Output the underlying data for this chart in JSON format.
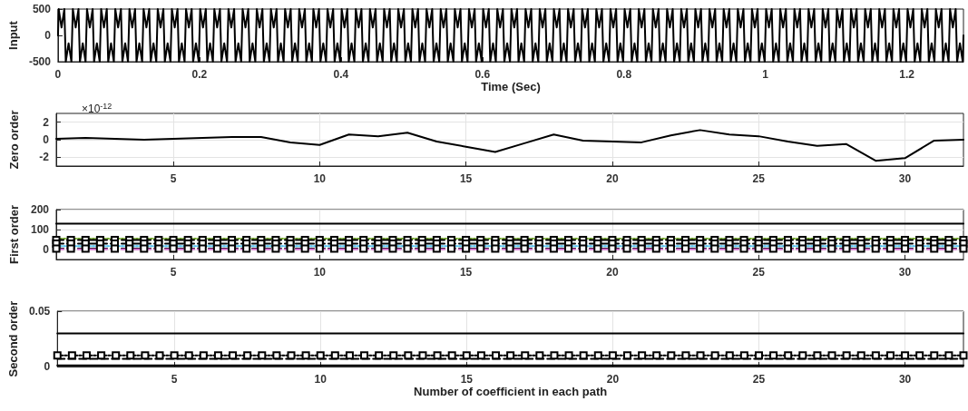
{
  "chart_data": [
    {
      "type": "line",
      "ylabel": "Input",
      "xlabel": "Time (Sec)",
      "xlim": [
        0,
        1.28
      ],
      "xticks": [
        0,
        0.2,
        0.4,
        0.6,
        0.8,
        1,
        1.2
      ],
      "ylim": [
        -500,
        500
      ],
      "yticks": [
        -500,
        0,
        500
      ],
      "grid": false,
      "marker": "none",
      "line_style": "solid",
      "series": [
        {
          "color": "#000000",
          "x": [
            0,
            0.001,
            0.005,
            0.009,
            0.011,
            0.015,
            0.019,
            0.021,
            0.025,
            0.029,
            0.031,
            0.035,
            0.039,
            0.041,
            0.045,
            0.049,
            0.051,
            0.055,
            0.059,
            0.061,
            0.065,
            0.069,
            0.071,
            0.075,
            0.079,
            0.081,
            0.085,
            0.089,
            0.091,
            0.095,
            0.099,
            0.101,
            0.105,
            0.109,
            0.111,
            0.115,
            0.119,
            0.121,
            0.125,
            0.129,
            0.131,
            0.135,
            0.139,
            0.141,
            0.145,
            0.149,
            0.151,
            0.155,
            0.159,
            0.161,
            0.165,
            0.169,
            0.171,
            0.175,
            0.179,
            0.181,
            0.185,
            0.189,
            0.191,
            0.195,
            0.199,
            0.201,
            0.205,
            0.209,
            0.211,
            0.215,
            0.219,
            0.221,
            0.225,
            0.229,
            0.231,
            0.235,
            0.239,
            0.241,
            0.245,
            0.249,
            0.251,
            0.255,
            0.259,
            0.261,
            0.265,
            0.269,
            0.271,
            0.275,
            0.279,
            0.281,
            0.285,
            0.289,
            0.291,
            0.295,
            0.299,
            0.301,
            0.305,
            0.309,
            0.311,
            0.315,
            0.319,
            0.321,
            0.325,
            0.329,
            0.331,
            0.335,
            0.339,
            0.341,
            0.345,
            0.349,
            0.351,
            0.355,
            0.359,
            0.361,
            0.365,
            0.369,
            0.371,
            0.375,
            0.379,
            0.381,
            0.385,
            0.389,
            0.391,
            0.395,
            0.399,
            0.401,
            0.405,
            0.409,
            0.411,
            0.415,
            0.419,
            0.421,
            0.425,
            0.429,
            0.431,
            0.435,
            0.439,
            0.441,
            0.445,
            0.449,
            0.451,
            0.455,
            0.459,
            0.461,
            0.465,
            0.469,
            0.471,
            0.475,
            0.479,
            0.481,
            0.485,
            0.489,
            0.491,
            0.495,
            0.499,
            0.501,
            0.505,
            0.509,
            0.511,
            0.515,
            0.519,
            0.521,
            0.525,
            0.529,
            0.531,
            0.535,
            0.539,
            0.541,
            0.545,
            0.549,
            0.551,
            0.555,
            0.559,
            0.561,
            0.565,
            0.569,
            0.571,
            0.575,
            0.579,
            0.581,
            0.585,
            0.589,
            0.591,
            0.595,
            0.599,
            0.601,
            0.605,
            0.609,
            0.611,
            0.615,
            0.619,
            0.621,
            0.625,
            0.629,
            0.631,
            0.635,
            0.639,
            0.641,
            0.645,
            0.649,
            0.651,
            0.655,
            0.659,
            0.661,
            0.665,
            0.669,
            0.671,
            0.675,
            0.679,
            0.681,
            0.685,
            0.689,
            0.691,
            0.695,
            0.699,
            0.701,
            0.705,
            0.709,
            0.711,
            0.715,
            0.719,
            0.721,
            0.725,
            0.729,
            0.731,
            0.735,
            0.739,
            0.741,
            0.745,
            0.749,
            0.751,
            0.755,
            0.759,
            0.761,
            0.765,
            0.769,
            0.771,
            0.775,
            0.779,
            0.781,
            0.785,
            0.789,
            0.791,
            0.795,
            0.799,
            0.801,
            0.805,
            0.809,
            0.811,
            0.815,
            0.819,
            0.821,
            0.825,
            0.829,
            0.831,
            0.835,
            0.839,
            0.841,
            0.845,
            0.849,
            0.851,
            0.855,
            0.859,
            0.861,
            0.865,
            0.869,
            0.871,
            0.875,
            0.879,
            0.881,
            0.885,
            0.889,
            0.891,
            0.895,
            0.899,
            0.901,
            0.905,
            0.909,
            0.911,
            0.915,
            0.919,
            0.921,
            0.925,
            0.929,
            0.931,
            0.935,
            0.939,
            0.941,
            0.945,
            0.949,
            0.951,
            0.955,
            0.959,
            0.961,
            0.965,
            0.969,
            0.971,
            0.975,
            0.979,
            0.981,
            0.985,
            0.989,
            0.991,
            0.995,
            0.999,
            1.001,
            1.005,
            1.009,
            1.011,
            1.015,
            1.019,
            1.021,
            1.025,
            1.029,
            1.031,
            1.035,
            1.039,
            1.041,
            1.045,
            1.049,
            1.051,
            1.055,
            1.059,
            1.061,
            1.065,
            1.069,
            1.071,
            1.075,
            1.079,
            1.081,
            1.085,
            1.089,
            1.091,
            1.095,
            1.099,
            1.101,
            1.105,
            1.109,
            1.111,
            1.115,
            1.119,
            1.121,
            1.125,
            1.129,
            1.131,
            1.135,
            1.139,
            1.141,
            1.145,
            1.149,
            1.151,
            1.155,
            1.159,
            1.161,
            1.165,
            1.169,
            1.171,
            1.175,
            1.179,
            1.181,
            1.185,
            1.189,
            1.191,
            1.195,
            1.199,
            1.201,
            1.205,
            1.209,
            1.211,
            1.215,
            1.219,
            1.221,
            1.225,
            1.229,
            1.231,
            1.235,
            1.239,
            1.241,
            1.245,
            1.249,
            1.251,
            1.255,
            1.259,
            1.261,
            1.265,
            1.269,
            1.271,
            1.275,
            1.279,
            1.28
          ],
          "values": [
            0,
            500,
            150,
            500,
            -500,
            -150,
            -500,
            500,
            150,
            500,
            -500,
            -150,
            -500,
            500,
            150,
            500,
            -500,
            -150,
            -500,
            500,
            150,
            500,
            -500,
            -150,
            -500,
            500,
            150,
            500,
            -500,
            -150,
            -500,
            500,
            150,
            500,
            -500,
            -150,
            -500,
            500,
            150,
            500,
            -500,
            -150,
            -500,
            500,
            150,
            500,
            -500,
            -150,
            -500,
            500,
            150,
            500,
            -500,
            -150,
            -500,
            500,
            150,
            500,
            -500,
            -150,
            -500,
            500,
            150,
            500,
            -500,
            -150,
            -500,
            500,
            150,
            500,
            -500,
            -150,
            -500,
            500,
            150,
            500,
            -500,
            -150,
            -500,
            500,
            150,
            500,
            -500,
            -150,
            -500,
            500,
            150,
            500,
            -500,
            -150,
            -500,
            500,
            150,
            500,
            -500,
            -150,
            -500,
            500,
            150,
            500,
            -500,
            -150,
            -500,
            500,
            150,
            500,
            -500,
            -150,
            -500,
            500,
            150,
            500,
            -500,
            -150,
            -500,
            500,
            150,
            500,
            -500,
            -150,
            -500,
            500,
            150,
            500,
            -500,
            -150,
            -500,
            500,
            150,
            500,
            -500,
            -150,
            -500,
            500,
            150,
            500,
            -500,
            -150,
            -500,
            500,
            150,
            500,
            -500,
            -150,
            -500,
            500,
            150,
            500,
            -500,
            -150,
            -500,
            500,
            150,
            500,
            -500,
            -150,
            -500,
            500,
            150,
            500,
            -500,
            -150,
            -500,
            500,
            150,
            500,
            -500,
            -150,
            -500,
            500,
            150,
            500,
            -500,
            -150,
            -500,
            500,
            150,
            500,
            -500,
            -150,
            -500,
            500,
            150,
            500,
            -500,
            -150,
            -500,
            500,
            150,
            500,
            -500,
            -150,
            -500,
            500,
            150,
            500,
            -500,
            -150,
            -500,
            500,
            150,
            500,
            -500,
            -150,
            -500,
            500,
            150,
            500,
            -500,
            -150,
            -500,
            500,
            150,
            500,
            -500,
            -150,
            -500,
            500,
            150,
            500,
            -500,
            -150,
            -500,
            500,
            150,
            500,
            -500,
            -150,
            -500,
            500,
            150,
            500,
            -500,
            -150,
            -500,
            500,
            150,
            500,
            -500,
            -150,
            -500,
            500,
            150,
            500,
            -500,
            -150,
            -500,
            500,
            150,
            500,
            -500,
            -150,
            -500,
            500,
            150,
            500,
            -500,
            -150,
            -500,
            500,
            150,
            500,
            -500,
            -150,
            -500,
            500,
            150,
            500,
            -500,
            -150,
            -500,
            500,
            150,
            500,
            -500,
            -150,
            -500,
            500,
            150,
            500,
            -500,
            -150,
            -500,
            500,
            150,
            500,
            -500,
            -150,
            -500,
            500,
            150,
            500,
            -500,
            -150,
            -500,
            500,
            150,
            500,
            -500,
            -150,
            -500,
            500,
            150,
            500,
            -500,
            -150,
            -500,
            500,
            150,
            500,
            -500,
            -150,
            -500,
            500,
            150,
            500,
            -500,
            -150,
            -500,
            500,
            150,
            500,
            -500,
            -150,
            -500,
            500,
            150,
            500,
            -500,
            -150,
            -500,
            500,
            150,
            500,
            -500,
            -150,
            -500,
            500,
            150,
            500,
            -500,
            -150,
            -500,
            500,
            150,
            500,
            -500,
            -150,
            -500,
            500,
            150,
            500,
            -500,
            -150,
            -500,
            500,
            150,
            500,
            -500,
            -150,
            -500,
            500,
            150,
            500,
            -500,
            -150,
            -500,
            500,
            150,
            500,
            -500,
            -150,
            -500,
            500,
            150,
            500,
            -500,
            -150,
            -500,
            500,
            150,
            500,
            -500,
            -150,
            -500,
            0
          ]
        }
      ]
    },
    {
      "type": "line",
      "ylabel": "Zero order",
      "annotations": [
        "×10$^{-12}$"
      ],
      "xlim": [
        1,
        32
      ],
      "xticks": [
        5,
        10,
        15,
        20,
        25,
        30
      ],
      "ylim": [
        -3,
        3
      ],
      "yticks": [
        -2,
        0,
        2
      ],
      "grid": true,
      "marker": "none",
      "line_style": "solid",
      "x": [
        1,
        2,
        3,
        4,
        5,
        6,
        7,
        8,
        9,
        10,
        11,
        12,
        13,
        14,
        15,
        16,
        17,
        18,
        19,
        20,
        21,
        22,
        23,
        24,
        25,
        26,
        27,
        28,
        29,
        30,
        31,
        32
      ],
      "series": [
        {
          "color": "#000000",
          "values": [
            0.1,
            0.2,
            0.1,
            0.0,
            0.1,
            0.2,
            0.3,
            0.3,
            -0.3,
            -0.6,
            0.6,
            0.4,
            0.8,
            -0.2,
            -0.8,
            -1.4,
            -0.4,
            0.6,
            -0.1,
            -0.2,
            -0.3,
            0.5,
            1.1,
            0.6,
            0.4,
            -0.2,
            -0.7,
            -0.5,
            -2.4,
            -2.1,
            -0.1,
            0.0
          ]
        }
      ]
    },
    {
      "type": "line",
      "ylabel": "First order",
      "xlim": [
        1,
        32
      ],
      "xticks": [
        5,
        10,
        15,
        20,
        25,
        30
      ],
      "ylim": [
        -50,
        200
      ],
      "yticks": [
        0,
        100,
        200
      ],
      "grid": true,
      "x": [
        1,
        1.5,
        2,
        2.5,
        3,
        3.5,
        4,
        4.5,
        5,
        5.5,
        6,
        6.5,
        7,
        7.5,
        8,
        8.5,
        9,
        9.5,
        10,
        10.5,
        11,
        11.5,
        12,
        12.5,
        13,
        13.5,
        14,
        14.5,
        15,
        15.5,
        16,
        16.5,
        17,
        17.5,
        18,
        18.5,
        19,
        19.5,
        20,
        20.5,
        21,
        21.5,
        22,
        22.5,
        23,
        23.5,
        24,
        24.5,
        25,
        25.5,
        26,
        26.5,
        27,
        27.5,
        28,
        28.5,
        29,
        29.5,
        30,
        30.5,
        31,
        31.5,
        32
      ],
      "series": [
        {
          "color": "#000000",
          "x": [
            1,
            32
          ],
          "values": [
            130,
            130
          ],
          "marker": "none",
          "line_style": "solid"
        },
        {
          "color": "#77ac30",
          "x": [
            1,
            32
          ],
          "values": [
            54,
            54
          ],
          "marker": "none",
          "line_style": "dotted"
        },
        {
          "color": "#000000",
          "values": [
            48,
            48,
            48,
            48,
            48,
            48,
            48,
            48,
            48,
            48,
            48,
            48,
            48,
            48,
            48,
            48,
            48,
            48,
            48,
            48,
            48,
            48,
            48,
            48,
            48,
            48,
            48,
            48,
            48,
            48,
            48,
            48,
            48,
            48,
            48,
            48,
            48,
            48,
            48,
            48,
            48,
            48,
            48,
            48,
            48,
            48,
            48,
            48,
            48,
            48,
            48,
            48,
            48,
            48,
            48,
            48,
            48,
            48,
            48,
            48,
            48,
            48,
            48
          ],
          "marker": "square",
          "line_style": "dashed"
        },
        {
          "color": "#000000",
          "values": [
            30,
            30,
            30,
            30,
            30,
            30,
            30,
            30,
            30,
            30,
            30,
            30,
            30,
            30,
            30,
            30,
            30,
            30,
            30,
            30,
            30,
            30,
            30,
            30,
            30,
            30,
            30,
            30,
            30,
            30,
            30,
            30,
            30,
            30,
            30,
            30,
            30,
            30,
            30,
            30,
            30,
            30,
            30,
            30,
            30,
            30,
            30,
            30,
            30,
            30,
            30,
            30,
            30,
            30,
            30,
            30,
            30,
            30,
            30,
            30,
            30,
            30,
            30
          ],
          "marker": "square",
          "line_style": "dashed"
        },
        {
          "color": "#4dbeee",
          "x": [
            1,
            32
          ],
          "values": [
            17,
            17
          ],
          "marker": "none",
          "line_style": "dotted"
        },
        {
          "color": "#000000",
          "values": [
            5,
            5,
            5,
            5,
            5,
            5,
            5,
            5,
            5,
            5,
            5,
            5,
            5,
            5,
            5,
            5,
            5,
            5,
            5,
            5,
            5,
            5,
            5,
            5,
            5,
            5,
            5,
            5,
            5,
            5,
            5,
            5,
            5,
            5,
            5,
            5,
            5,
            5,
            5,
            5,
            5,
            5,
            5,
            5,
            5,
            5,
            5,
            5,
            5,
            5,
            5,
            5,
            5,
            5,
            5,
            5,
            5,
            5,
            5,
            5,
            5,
            5,
            5
          ],
          "marker": "square",
          "line_style": "dashed"
        },
        {
          "color": "#d96ad0",
          "x": [
            1,
            32
          ],
          "values": [
            1,
            1
          ],
          "marker": "none",
          "line_style": "dashed"
        }
      ]
    },
    {
      "type": "line",
      "ylabel": "Second order",
      "xlabel": "Number of coefficient in each path",
      "xlim": [
        1,
        32
      ],
      "xticks": [
        5,
        10,
        15,
        20,
        25,
        30
      ],
      "ylim": [
        0,
        0.05
      ],
      "yticks": [
        0,
        0.05
      ],
      "grid": true,
      "x": [
        1,
        1.5,
        2,
        2.5,
        3,
        3.5,
        4,
        4.5,
        5,
        5.5,
        6,
        6.5,
        7,
        7.5,
        8,
        8.5,
        9,
        9.5,
        10,
        10.5,
        11,
        11.5,
        12,
        12.5,
        13,
        13.5,
        14,
        14.5,
        15,
        15.5,
        16,
        16.5,
        17,
        17.5,
        18,
        18.5,
        19,
        19.5,
        20,
        20.5,
        21,
        21.5,
        22,
        22.5,
        23,
        23.5,
        24,
        24.5,
        25,
        25.5,
        26,
        26.5,
        27,
        27.5,
        28,
        28.5,
        29,
        29.5,
        30,
        30.5,
        31,
        31.5,
        32
      ],
      "series": [
        {
          "color": "#000000",
          "x": [
            1,
            32
          ],
          "values": [
            0.03,
            0.03
          ],
          "marker": "none",
          "line_style": "solid"
        },
        {
          "color": "#000000",
          "values": [
            0.01,
            0.01,
            0.01,
            0.01,
            0.01,
            0.01,
            0.01,
            0.01,
            0.01,
            0.01,
            0.01,
            0.01,
            0.01,
            0.01,
            0.01,
            0.01,
            0.01,
            0.01,
            0.01,
            0.01,
            0.01,
            0.01,
            0.01,
            0.01,
            0.01,
            0.01,
            0.01,
            0.01,
            0.01,
            0.01,
            0.01,
            0.01,
            0.01,
            0.01,
            0.01,
            0.01,
            0.01,
            0.01,
            0.01,
            0.01,
            0.01,
            0.01,
            0.01,
            0.01,
            0.01,
            0.01,
            0.01,
            0.01,
            0.01,
            0.01,
            0.01,
            0.01,
            0.01,
            0.01,
            0.01,
            0.01,
            0.01,
            0.01,
            0.01,
            0.01,
            0.01,
            0.01,
            0.01
          ],
          "marker": "square",
          "line_style": "dotted"
        },
        {
          "color": "#000000",
          "x": [
            1,
            32
          ],
          "values": [
            0.007,
            0.007
          ],
          "marker": "none",
          "line_style": "dashed"
        },
        {
          "color": "#000000",
          "x": [
            1,
            32
          ],
          "values": [
            0.001,
            0.001
          ],
          "marker": "none",
          "line_style": "solid"
        }
      ]
    }
  ]
}
